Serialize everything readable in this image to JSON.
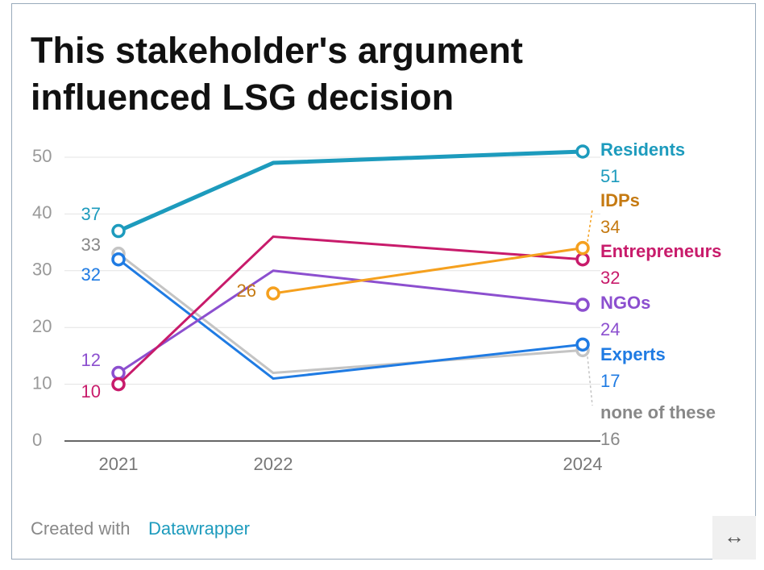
{
  "chart_data": {
    "type": "line",
    "title": "This stakeholder's argument influenced LSG decision",
    "x": [
      2021,
      2022,
      2024
    ],
    "xlim": [
      2021,
      2024
    ],
    "xticks": [
      2021,
      2022,
      2024
    ],
    "ylim": [
      0,
      50
    ],
    "yticks": [
      0,
      10,
      20,
      30,
      40,
      50
    ],
    "grid": true,
    "series": [
      {
        "name": "Residents",
        "color": "#1d9bbd",
        "values": [
          37,
          49,
          51
        ]
      },
      {
        "name": "IDPs",
        "color": "#f5a01e",
        "values": [
          null,
          26,
          34
        ]
      },
      {
        "name": "Entrepreneurs",
        "color": "#c81b6b",
        "values": [
          10,
          36,
          32
        ]
      },
      {
        "name": "NGOs",
        "color": "#8c4fcf",
        "values": [
          12,
          30,
          24
        ]
      },
      {
        "name": "Experts",
        "color": "#1f7be3",
        "values": [
          32,
          11,
          17
        ]
      },
      {
        "name": "none of these",
        "color": "#c4c4c4",
        "values": [
          33,
          12,
          16
        ]
      }
    ],
    "footer": {
      "prefix": "Created with",
      "link": "Datawrapper"
    },
    "resize_icon": "↔"
  }
}
